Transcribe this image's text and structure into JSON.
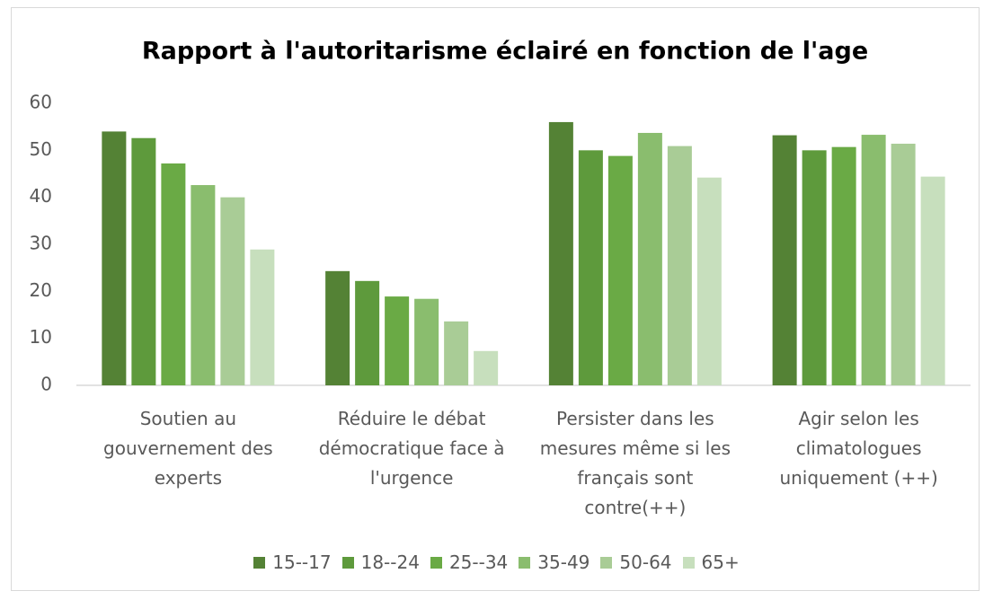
{
  "chart_data": {
    "type": "bar",
    "title": "Rapport à l'autoritarisme éclairé en fonction de l'age",
    "categories": [
      "Soutien au gouvernement des experts",
      "Réduire le débat démocratique face à l'urgence",
      "Persister dans les mesures même si les français sont contre(++)",
      "Agir selon les climatologues uniquement (++)"
    ],
    "series": [
      {
        "name": "15--17",
        "color": "#548235",
        "values": [
          54,
          24.3,
          56,
          53.2
        ]
      },
      {
        "name": "18--24",
        "color": "#5e9a3c",
        "values": [
          52.6,
          22.2,
          50,
          50
        ]
      },
      {
        "name": "25--34",
        "color": "#6aaa45",
        "values": [
          47.2,
          18.9,
          48.8,
          50.7
        ]
      },
      {
        "name": "35-49",
        "color": "#8abd6e",
        "values": [
          42.6,
          18.4,
          53.7,
          53.3
        ]
      },
      {
        "name": "50-64",
        "color": "#a9cc96",
        "values": [
          40,
          13.6,
          50.9,
          51.4
        ]
      },
      {
        "name": "65+",
        "color": "#c7dfbd",
        "values": [
          28.9,
          7.3,
          44.2,
          44.4
        ]
      }
    ],
    "ylim": [
      0,
      60
    ],
    "yticks": [
      0,
      10,
      20,
      30,
      40,
      50,
      60
    ],
    "grid": false,
    "legend": "bottom"
  }
}
